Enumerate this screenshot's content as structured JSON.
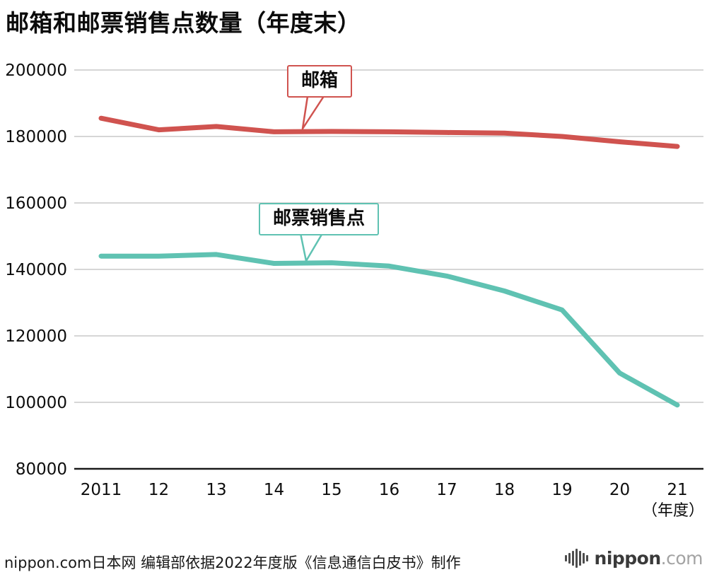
{
  "title": "邮箱和邮票销售点数量（年度末）",
  "chart_data": {
    "type": "line",
    "categories": [
      "2011",
      "12",
      "13",
      "14",
      "15",
      "16",
      "17",
      "18",
      "19",
      "20",
      "21"
    ],
    "x_axis_unit": "（年度）",
    "ylim": [
      80000,
      200000
    ],
    "yticks": [
      80000,
      100000,
      120000,
      140000,
      160000,
      180000,
      200000
    ],
    "grid": "horizontal",
    "legend_position": "inline-callouts",
    "series": [
      {
        "name": "邮箱",
        "color": "#d0534f",
        "values": [
          185500,
          182000,
          183000,
          181400,
          181500,
          181400,
          181200,
          181000,
          180000,
          178400,
          177000
        ]
      },
      {
        "name": "邮票销售点",
        "color": "#5fc2b2",
        "values": [
          144000,
          144000,
          144500,
          141800,
          142000,
          141000,
          138000,
          133500,
          127800,
          108800,
          99200
        ]
      }
    ],
    "annotations": [
      {
        "label": "邮箱",
        "series": 0
      },
      {
        "label": "邮票销售点",
        "series": 1
      }
    ]
  },
  "footer": {
    "source": "nippon.com日本网 编辑部依据2022年度版《信息通信白皮书》制作",
    "logo_text": "nippon",
    "logo_suffix": ".com"
  },
  "icons": {
    "logo_mark": "soundwave-bars"
  },
  "colors": {
    "mailbox_line": "#d0534f",
    "stamp_outlet_line": "#5fc2b2",
    "gridline": "#c9c9c9",
    "axis_line": "#1a1a1a"
  }
}
